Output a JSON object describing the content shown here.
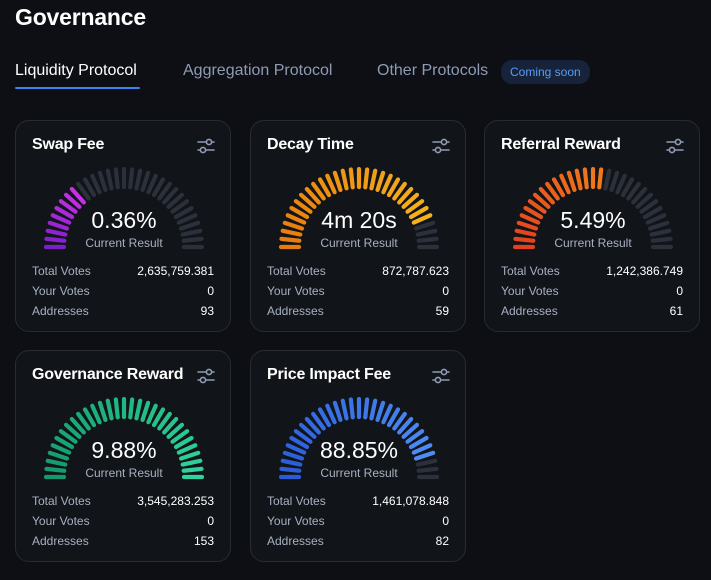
{
  "page": {
    "title": "Governance"
  },
  "tabs": [
    {
      "label": "Liquidity Protocol",
      "active": true
    },
    {
      "label": "Aggregation Protocol",
      "active": false
    },
    {
      "label": "Other Protocols",
      "active": false
    }
  ],
  "coming_soon_badge": "Coming soon",
  "stat_labels": {
    "total_votes": "Total Votes",
    "your_votes": "Your Votes",
    "addresses": "Addresses"
  },
  "cards": [
    {
      "title": "Swap Fee",
      "value": "0.36%",
      "caption": "Current Result",
      "fill_fraction": 0.29,
      "color_start": "#7c1fc9",
      "color_end": "#c82fe6",
      "total_votes": "2,635,759.381",
      "your_votes": "0",
      "addresses": "93",
      "icon": "sliders-icon"
    },
    {
      "title": "Decay Time",
      "value": "4m 20s",
      "caption": "Current Result",
      "fill_fraction": 0.86,
      "color_start": "#e97a0f",
      "color_end": "#f5b21c",
      "total_votes": "872,787.623",
      "your_votes": "0",
      "addresses": "59",
      "icon": "sliders-icon"
    },
    {
      "title": "Referral Reward",
      "value": "5.49%",
      "caption": "Current Result",
      "fill_fraction": 0.55,
      "color_start": "#e2401f",
      "color_end": "#f07a1a",
      "total_votes": "1,242,386.749",
      "your_votes": "0",
      "addresses": "61",
      "icon": "sliders-icon"
    },
    {
      "title": "Governance Reward",
      "value": "9.88%",
      "caption": "Current Result",
      "fill_fraction": 1.0,
      "color_start": "#139a6a",
      "color_end": "#2fd39b",
      "total_votes": "3,545,283.253",
      "your_votes": "0",
      "addresses": "153",
      "icon": "sliders-icon"
    },
    {
      "title": "Price Impact Fee",
      "value": "88.85%",
      "caption": "Current Result",
      "fill_fraction": 0.89,
      "color_start": "#2a5ad8",
      "color_end": "#4d8df2",
      "total_votes": "1,461,078.848",
      "your_votes": "0",
      "addresses": "82",
      "icon": "sliders-icon"
    }
  ],
  "colors": {
    "background": "#0d0f14",
    "card_background": "#111419",
    "card_border": "#262b36",
    "accent": "#3b82f6",
    "muted_text": "#a8b1c2",
    "gauge_empty": "#2b303a"
  }
}
